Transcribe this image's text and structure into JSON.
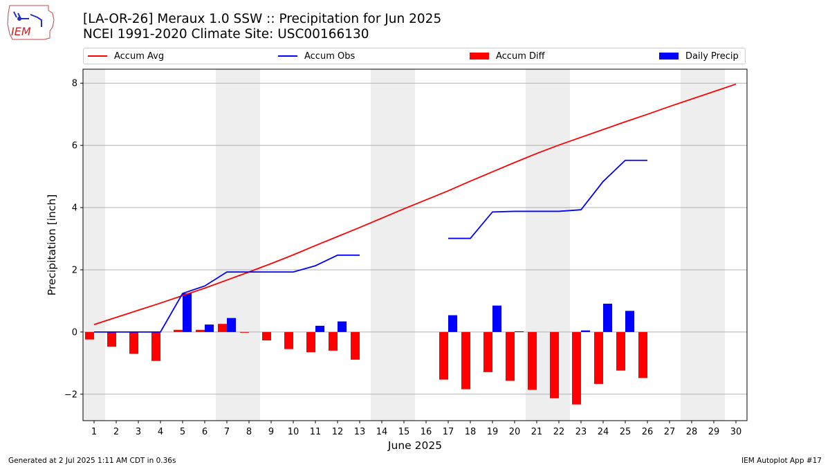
{
  "header": {
    "logo_text": "IEM",
    "title_line1": "[LA-OR-26] Meraux 1.0 SSW :: Precipitation for Jun 2025",
    "title_line2": "NCEI 1991-2020 Climate Site: USC00166130"
  },
  "legend": {
    "accum_avg": "Accum Avg",
    "accum_obs": "Accum Obs",
    "accum_diff": "Accum Diff",
    "daily_precip": "Daily Precip"
  },
  "footer": {
    "generated": "Generated at 2 Jul 2025 1:11 AM CDT in 0.36s",
    "app": "IEM Autoplot App #17"
  },
  "chart_data": {
    "type": "bar",
    "title": "[LA-OR-26] Meraux 1.0 SSW :: Precipitation for Jun 2025",
    "subtitle": "NCEI 1991-2020 Climate Site: USC00166130",
    "xlabel": "June 2025",
    "ylabel": "Precipitation [inch]",
    "ylim": [
      -2.85,
      8.45
    ],
    "yticks": [
      -2,
      0,
      2,
      4,
      6,
      8
    ],
    "days": [
      1,
      2,
      3,
      4,
      5,
      6,
      7,
      8,
      9,
      10,
      11,
      12,
      13,
      14,
      15,
      16,
      17,
      18,
      19,
      20,
      21,
      22,
      23,
      24,
      25,
      26,
      27,
      28,
      29,
      30
    ],
    "weekend_shading": [
      [
        1,
        1
      ],
      [
        7,
        8
      ],
      [
        14,
        15
      ],
      [
        21,
        22
      ],
      [
        28,
        29
      ]
    ],
    "grid": "horizontal",
    "legend_position": "top",
    "colors": {
      "avg": "#ff0000",
      "obs": "#0000ff",
      "diff": "#ff0000",
      "daily": "#0000ff",
      "shade": "#eeeeee"
    },
    "series": [
      {
        "name": "Accum Avg",
        "type": "line",
        "values": [
          0.24,
          0.47,
          0.7,
          0.93,
          1.17,
          1.41,
          1.67,
          1.93,
          2.2,
          2.48,
          2.78,
          3.07,
          3.36,
          3.66,
          3.96,
          4.25,
          4.54,
          4.85,
          5.15,
          5.45,
          5.74,
          6.01,
          6.26,
          6.51,
          6.76,
          7.0,
          7.25,
          7.49,
          7.73,
          7.97
        ]
      },
      {
        "name": "Accum Obs",
        "type": "line",
        "values": [
          0,
          0,
          0,
          0,
          1.24,
          1.48,
          1.93,
          1.93,
          1.93,
          1.93,
          2.13,
          2.47,
          2.47,
          null,
          null,
          null,
          3.01,
          3.01,
          3.86,
          3.88,
          3.88,
          3.88,
          3.93,
          4.84,
          5.52,
          5.52,
          null,
          null,
          null,
          null
        ]
      },
      {
        "name": "Accum Diff",
        "type": "bar",
        "values": [
          -0.24,
          -0.47,
          -0.7,
          -0.93,
          0.07,
          0.07,
          0.26,
          -0.01,
          -0.27,
          -0.55,
          -0.65,
          -0.6,
          -0.89,
          null,
          null,
          null,
          -1.53,
          -1.84,
          -1.29,
          -1.57,
          -1.86,
          -2.13,
          -2.33,
          -1.67,
          -1.24,
          -1.48,
          null,
          null,
          null,
          null
        ]
      },
      {
        "name": "Daily Precip",
        "type": "bar",
        "values": [
          0,
          0,
          0,
          0,
          1.24,
          0.24,
          0.45,
          0,
          0,
          0,
          0.2,
          0.34,
          0,
          null,
          null,
          null,
          0.54,
          0,
          0.85,
          0.02,
          0,
          0,
          0.05,
          0.91,
          0.68,
          0,
          null,
          null,
          null,
          null
        ]
      }
    ]
  }
}
